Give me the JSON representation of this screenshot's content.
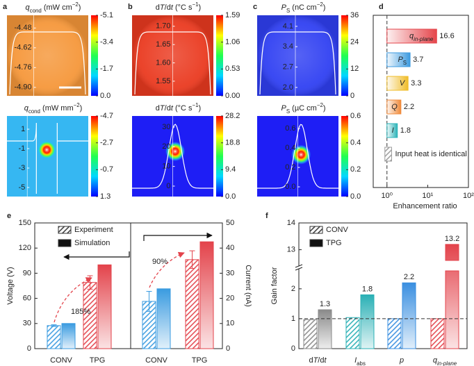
{
  "chart_data": [
    {
      "type": "heatmap",
      "panel": "a",
      "title": [
        {
          "text": "q",
          "style": "italic"
        },
        {
          "text": "cond",
          "style": "sub"
        },
        {
          "text": " (mW cm"
        },
        {
          "text": "−2",
          "style": "sup"
        },
        {
          "text": ")"
        }
      ],
      "field": "uniform",
      "color": "#f5973a",
      "ylim": [
        -4.96,
        -4.39
      ],
      "yticks": [
        -4.48,
        -4.62,
        -4.76,
        {
          "value": -4.9,
          "label": "-4.90"
        }
      ],
      "clim": [
        0,
        -5.1
      ],
      "cticks": [
        -5.1,
        -3.4,
        -1.7,
        {
          "value": 0,
          "label": "0.0"
        }
      ],
      "profile": "plateau",
      "scalebar": true
    },
    {
      "type": "heatmap",
      "title": [
        {
          "text": "q",
          "style": "italic"
        },
        {
          "text": "cond",
          "style": "sub"
        },
        {
          "text": " (mW mm"
        },
        {
          "text": "−2",
          "style": "sup"
        },
        {
          "text": ")"
        }
      ],
      "field": "spot",
      "color": "#36b7f2",
      "ylim": [
        -5.93,
        2.36
      ],
      "yticks": [
        1,
        -1,
        -3,
        -5
      ],
      "clim": [
        1.3,
        -4.7
      ],
      "cticks": [
        -4.7,
        -2.7,
        -0.7,
        1.3
      ],
      "profile": "dipole"
    },
    {
      "type": "heatmap",
      "panel": "b",
      "title": [
        {
          "text": "d"
        },
        {
          "text": "T",
          "style": "italic"
        },
        {
          "text": "/d"
        },
        {
          "text": "t",
          "style": "italic"
        },
        {
          "text": " (°C s"
        },
        {
          "text": "−1",
          "style": "sup"
        },
        {
          "text": ")"
        }
      ],
      "field": "uniform",
      "color": "#ea3a20",
      "ylim": [
        1.51,
        1.73
      ],
      "yticks": [
        {
          "value": 1.7,
          "label": "1.70"
        },
        1.65,
        {
          "value": 1.6,
          "label": "1.60"
        },
        1.55
      ],
      "clim": [
        0,
        1.59
      ],
      "cticks": [
        1.59,
        1.06,
        0.53,
        {
          "value": 0,
          "label": "0.00"
        }
      ],
      "profile": "plateau"
    },
    {
      "type": "heatmap",
      "title": [
        {
          "text": "d"
        },
        {
          "text": "T",
          "style": "italic"
        },
        {
          "text": "/d"
        },
        {
          "text": "t",
          "style": "italic"
        },
        {
          "text": " (°C s"
        },
        {
          "text": "−1",
          "style": "sup"
        },
        {
          "text": ")"
        }
      ],
      "field": "spot",
      "color": "#1e1ef5",
      "ylim": [
        -5.3,
        35.6
      ],
      "yticks": [
        30,
        20,
        10,
        0
      ],
      "clim": [
        0,
        28.2
      ],
      "cticks": [
        28.2,
        18.8,
        9.4,
        {
          "value": 0,
          "label": "0.0"
        }
      ],
      "profile": "peak"
    },
    {
      "type": "heatmap",
      "panel": "c",
      "title": [
        {
          "text": "P",
          "style": "italic"
        },
        {
          "text": "S",
          "style": "sub"
        },
        {
          "text": " (nC cm"
        },
        {
          "text": "−2",
          "style": "sup"
        },
        {
          "text": ")"
        }
      ],
      "field": "uniform",
      "color": "#3040f2",
      "ylim": [
        1.71,
        4.48
      ],
      "yticks": [
        4.1,
        3.4,
        2.7,
        {
          "value": 2,
          "label": "2.0"
        }
      ],
      "clim": [
        0,
        36
      ],
      "cticks": [
        36,
        24,
        12,
        0
      ],
      "profile": "plateau"
    },
    {
      "type": "heatmap",
      "title": [
        {
          "text": "P",
          "style": "italic"
        },
        {
          "text": "S",
          "style": "sub"
        },
        {
          "text": " (µC cm"
        },
        {
          "text": "−2",
          "style": "sup"
        },
        {
          "text": ")"
        }
      ],
      "field": "spot",
      "color": "#1e1ef5",
      "ylim": [
        -0.1,
        0.73
      ],
      "yticks": [
        0.6,
        0.4,
        0.2,
        {
          "value": 0,
          "label": "0.0"
        }
      ],
      "clim": [
        0,
        0.6
      ],
      "cticks": [
        0.6,
        0.4,
        0.2,
        {
          "value": 0,
          "label": "0.0"
        }
      ],
      "profile": "peak"
    },
    {
      "type": "hbar",
      "panel": "d",
      "categories": [
        [
          {
            "text": "q",
            "style": "italic"
          },
          {
            "text": "in-plane",
            "style": "italic sub"
          }
        ],
        [
          {
            "text": "P",
            "style": "italic"
          },
          {
            "text": "S",
            "style": "sub"
          }
        ],
        [
          {
            "text": "V",
            "style": "italic"
          }
        ],
        [
          {
            "text": "Q",
            "style": "italic"
          }
        ],
        [
          {
            "text": "I",
            "style": "italic"
          }
        ]
      ],
      "values": [
        16.6,
        3.7,
        3.3,
        2.2,
        1.8
      ],
      "colors": [
        "#e5454b",
        "#3d9be0",
        "#f0bd2a",
        "#f08a3a",
        "#2bb3b8"
      ],
      "baseline_bar": {
        "label": "Input heat is identical",
        "value": 1.3,
        "color": "#9a9a9a"
      },
      "log_x": true,
      "xlim": [
        0.46,
        100
      ],
      "xticks": [
        {
          "value": 1,
          "label": "10⁰"
        },
        {
          "value": 10,
          "label": "10¹"
        },
        {
          "value": 100,
          "label": "10²"
        }
      ],
      "reference": 1,
      "xlabel": "Enhancement ratio"
    },
    {
      "type": "bar",
      "panel": "e",
      "categories": [
        "CONV",
        "TPG",
        "CONV",
        "TPG"
      ],
      "category_axes": [
        "y",
        "y",
        "y2",
        "y2"
      ],
      "colors": [
        "#3a9be0",
        "#e3434b",
        "#3a9be0",
        "#e3434b"
      ],
      "series": [
        {
          "name": "Experiment",
          "style": "hatch",
          "values": [
            27.5,
            79,
            18.8,
            35.4
          ],
          "errors": [
            1,
            8,
            4,
            3.5
          ]
        },
        {
          "name": "Simulation",
          "style": "solid",
          "values": [
            30,
            100,
            23.8,
            42.5
          ]
        }
      ],
      "ylim": [
        0,
        150
      ],
      "yticks": [
        0,
        30,
        60,
        90,
        120,
        150
      ],
      "y2lim": [
        0,
        50
      ],
      "y2ticks": [
        0,
        10,
        20,
        30,
        40,
        50
      ],
      "ylabel": "Voltage (V)",
      "y2label": "Current (nA)",
      "annotations": [
        "185%",
        "90%"
      ],
      "annotation_color": "#e3434b"
    },
    {
      "type": "bar",
      "panel": "f",
      "categories": [
        [
          {
            "text": "d"
          },
          {
            "text": "T",
            "style": "italic"
          },
          {
            "text": "/d"
          },
          {
            "text": "t",
            "style": "italic"
          }
        ],
        [
          {
            "text": "I",
            "style": "italic"
          },
          {
            "text": "abs",
            "style": "sub"
          }
        ],
        [
          {
            "text": "p",
            "style": "italic"
          }
        ],
        [
          {
            "text": "q",
            "style": "italic"
          },
          {
            "text": "in-plane",
            "style": "italic sub"
          }
        ]
      ],
      "colors": [
        "#8a8a8a",
        "#2ab0b5",
        "#3a8fe0",
        "#e3434b"
      ],
      "series": [
        {
          "name": "CONV",
          "style": "hatch",
          "values": [
            0.97,
            1.04,
            1,
            1
          ]
        },
        {
          "name": "TPG",
          "style": "solid",
          "values": [
            1.3,
            1.8,
            2.2,
            13.2
          ],
          "labels": true
        }
      ],
      "ylim": [
        0,
        14
      ],
      "ybreak": [
        2.6,
        12.6
      ],
      "yticks": [
        0,
        1,
        2,
        13,
        14
      ],
      "reference": 1,
      "ylabel": "Gain factor"
    }
  ]
}
